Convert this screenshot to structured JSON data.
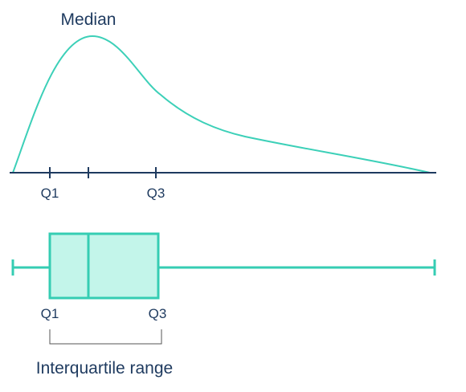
{
  "density": {
    "median_label": "Median",
    "q1_label": "Q1",
    "q3_label": "Q3"
  },
  "boxplot": {
    "q1_label": "Q1",
    "q3_label": "Q3",
    "iqr_label": "Interquartile range"
  },
  "colors": {
    "curve": "#3cd0b8",
    "box_fill": "#c3f5ea",
    "box_stroke": "#35cdb3",
    "axis": "#1e3a5f",
    "bracket": "#555555",
    "text": "#1e3a5f"
  }
}
